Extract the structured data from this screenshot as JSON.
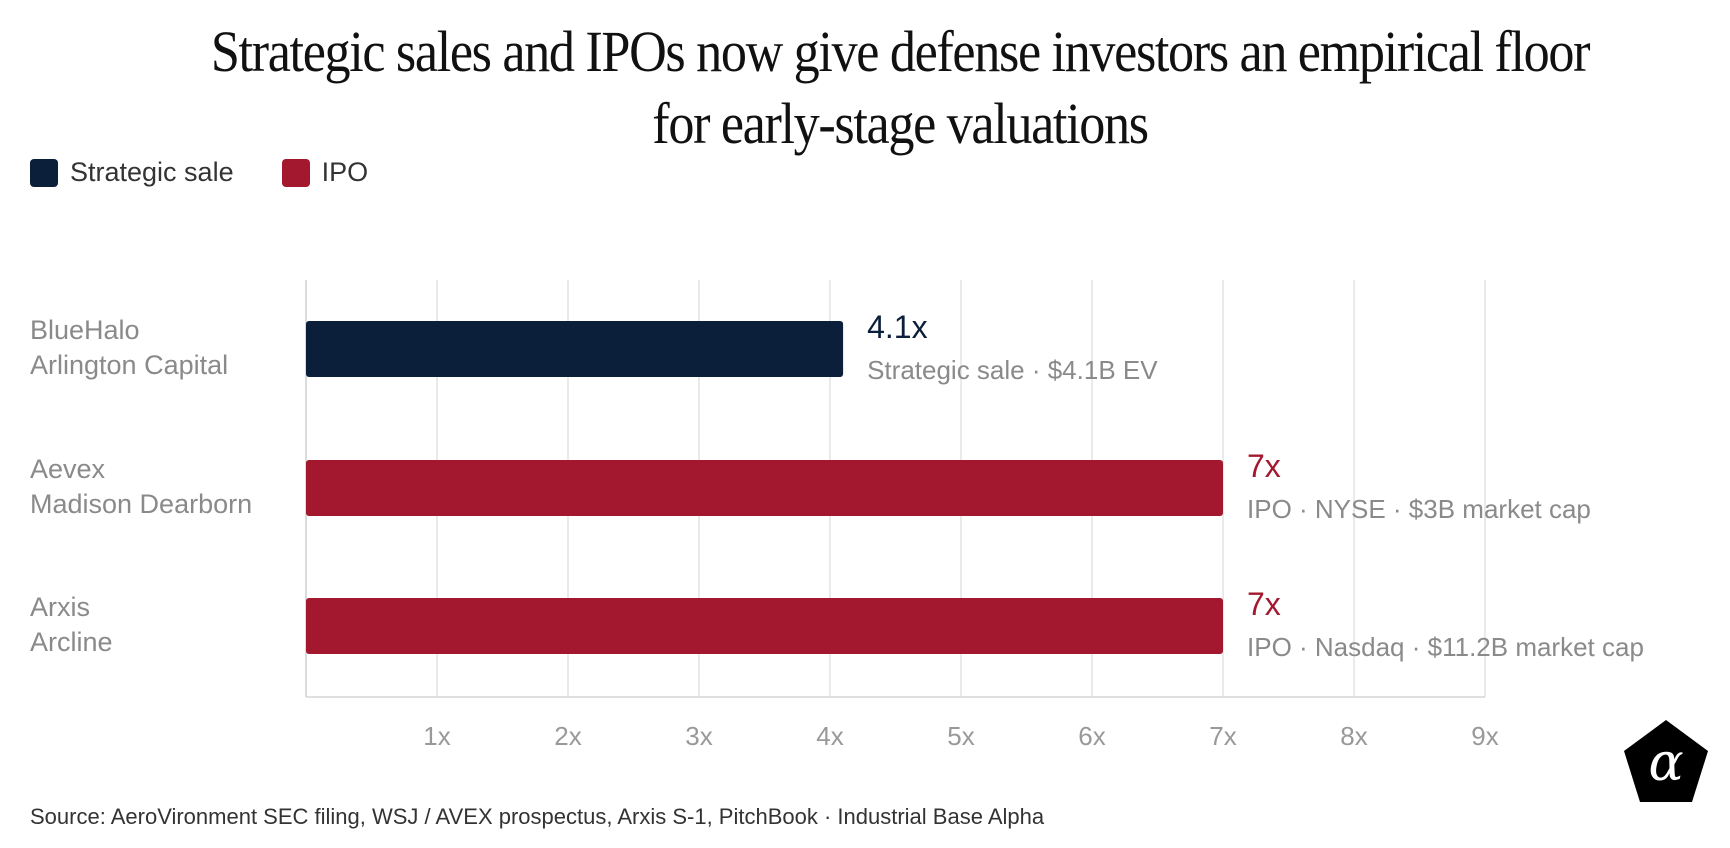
{
  "title": "Strategic sales and IPOs now give defense investors an empirical floor for early-stage valuations",
  "legend": [
    {
      "label": "Strategic sale",
      "color": "#0c1f3a"
    },
    {
      "label": "IPO",
      "color": "#a3182e"
    }
  ],
  "chart_data": {
    "type": "bar",
    "orientation": "horizontal",
    "title": "Strategic sales and IPOs now give defense investors an empirical floor for early-stage valuations",
    "xlabel": "",
    "ylabel": "",
    "xlim": [
      0,
      9
    ],
    "ticks": [
      1,
      2,
      3,
      4,
      5,
      6,
      7,
      8,
      9
    ],
    "tick_suffix": "x",
    "grid": true,
    "legend_position": "top-left",
    "bars": [
      {
        "company": "BlueHalo",
        "acquirer": "Arlington Capital",
        "value": 4.1,
        "value_label": "4.1x",
        "type": "Strategic sale",
        "note": "Strategic sale · $4.1B EV",
        "color": "#0c1f3a"
      },
      {
        "company": "Aevex",
        "acquirer": "Madison Dearborn",
        "value": 7,
        "value_label": "7x",
        "type": "IPO",
        "note": "IPO · NYSE · $3B market cap",
        "color": "#a3182e"
      },
      {
        "company": "Arxis",
        "acquirer": "Arcline",
        "value": 7,
        "value_label": "7x",
        "type": "IPO",
        "note": "IPO · Nasdaq · $11.2B market cap",
        "color": "#a3182e"
      }
    ]
  },
  "source": "Source: AeroVironment SEC filing, WSJ / AVEX prospectus, Arxis S-1, PitchBook · Industrial Base Alpha",
  "logo": {
    "glyph": "α",
    "icon": "alpha-pentagon-logo"
  }
}
